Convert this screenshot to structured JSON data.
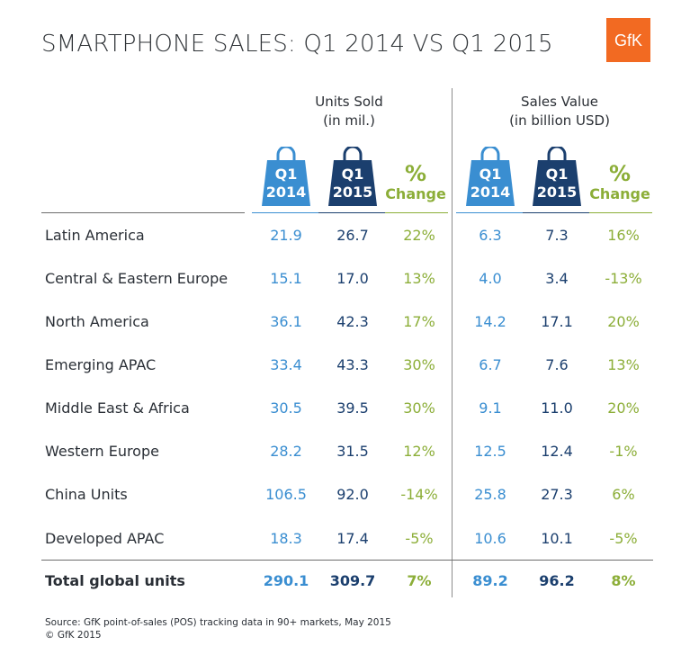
{
  "title": "SMARTPHONE SALES: Q1 2014 VS Q1 2015",
  "logo_text": "GfK",
  "groups": {
    "units": {
      "line1": "Units Sold",
      "line2": "(in mil.)"
    },
    "value": {
      "line1": "Sales Value",
      "line2": "(in billion USD)"
    }
  },
  "col_headers": {
    "q14": {
      "top": "Q1",
      "bottom": "2014"
    },
    "q15": {
      "top": "Q1",
      "bottom": "2015"
    },
    "pct": {
      "symbol": "%",
      "word": "Change"
    }
  },
  "colors": {
    "q2014": "#3a8ed1",
    "q2015": "#1b3f6e",
    "change": "#8cae38",
    "logo": "#f26a22"
  },
  "chart_data": {
    "type": "table",
    "title": "SMARTPHONE SALES: Q1 2014 VS Q1 2015",
    "columns": [
      "Units Sold Q1 2014",
      "Units Sold Q1 2015",
      "Units Sold % Change",
      "Sales Value Q1 2014",
      "Sales Value Q1 2015",
      "Sales Value % Change"
    ],
    "rows": [
      {
        "region": "Latin America",
        "u14": "21.9",
        "u15": "26.7",
        "up": "22%",
        "v14": "6.3",
        "v15": "7.3",
        "vp": "16%"
      },
      {
        "region": "Central & Eastern Europe",
        "u14": "15.1",
        "u15": "17.0",
        "up": "13%",
        "v14": "4.0",
        "v15": "3.4",
        "vp": "-13%"
      },
      {
        "region": "North America",
        "u14": "36.1",
        "u15": "42.3",
        "up": "17%",
        "v14": "14.2",
        "v15": "17.1",
        "vp": "20%"
      },
      {
        "region": "Emerging APAC",
        "u14": "33.4",
        "u15": "43.3",
        "up": "30%",
        "v14": "6.7",
        "v15": "7.6",
        "vp": "13%"
      },
      {
        "region": "Middle East & Africa",
        "u14": "30.5",
        "u15": "39.5",
        "up": "30%",
        "v14": "9.1",
        "v15": "11.0",
        "vp": "20%"
      },
      {
        "region": "Western Europe",
        "u14": "28.2",
        "u15": "31.5",
        "up": "12%",
        "v14": "12.5",
        "v15": "12.4",
        "vp": "-1%"
      },
      {
        "region": "China Units",
        "u14": "106.5",
        "u15": "92.0",
        "up": "-14%",
        "v14": "25.8",
        "v15": "27.3",
        "vp": "6%"
      },
      {
        "region": "Developed APAC",
        "u14": "18.3",
        "u15": "17.4",
        "up": "-5%",
        "v14": "10.6",
        "v15": "10.1",
        "vp": "-5%"
      }
    ],
    "total": {
      "region": "Total global units",
      "u14": "290.1",
      "u15": "309.7",
      "up": "7%",
      "v14": "89.2",
      "v15": "96.2",
      "vp": "8%"
    }
  },
  "footer": {
    "source": "Source: GfK point-of-sales (POS) tracking data in 90+ markets, May 2015",
    "copyright": "© GfK 2015"
  }
}
